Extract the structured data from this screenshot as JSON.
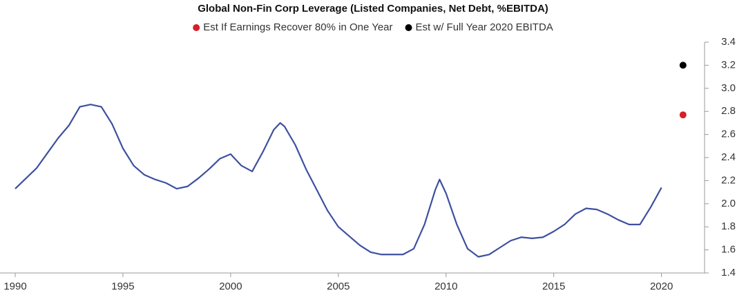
{
  "chart_data": {
    "type": "line",
    "title": "Global Non-Fin Corp Leverage (Listed Companies, Net Debt, %EBITDA)",
    "xlim": [
      1990,
      2022
    ],
    "xticks": [
      1990,
      1995,
      2000,
      2005,
      2010,
      2015,
      2020
    ],
    "ylim": [
      1.4,
      3.4
    ],
    "yticks": [
      1.4,
      1.6,
      1.8,
      {
        "value": 2,
        "label": "2.0"
      },
      2.2,
      2.4,
      2.6,
      2.8,
      {
        "value": 3,
        "label": "3.0"
      },
      3.2,
      3.4
    ],
    "series": [
      {
        "type": "line",
        "color": "#3d4fa0",
        "x": [
          1990,
          1990.5,
          1991,
          1991.5,
          1992,
          1992.5,
          1993,
          1993.5,
          1994,
          1994.5,
          1995,
          1995.5,
          1996,
          1996.5,
          1997,
          1997.5,
          1998,
          1998.5,
          1999,
          1999.5,
          2000,
          2000.5,
          2001,
          2001.5,
          2002,
          2002.3,
          2002.5,
          2003,
          2003.5,
          2004,
          2004.5,
          2005,
          2005.5,
          2006,
          2006.5,
          2007,
          2007.5,
          2008,
          2008.5,
          2009,
          2009.5,
          2009.7,
          2010,
          2010.5,
          2011,
          2011.5,
          2012,
          2012.5,
          2013,
          2013.5,
          2014,
          2014.5,
          2015,
          2015.5,
          2016,
          2016.5,
          2017,
          2017.5,
          2018,
          2018.5,
          2019,
          2019.5,
          2020
        ],
        "values": [
          2.13,
          2.22,
          2.31,
          2.44,
          2.57,
          2.68,
          2.84,
          2.86,
          2.84,
          2.69,
          2.48,
          2.33,
          2.25,
          2.21,
          2.18,
          2.13,
          2.15,
          2.22,
          2.3,
          2.39,
          2.43,
          2.33,
          2.28,
          2.45,
          2.64,
          2.7,
          2.67,
          2.51,
          2.3,
          2.12,
          1.94,
          1.8,
          1.72,
          1.64,
          1.58,
          1.56,
          1.56,
          1.56,
          1.61,
          1.82,
          2.12,
          2.21,
          2.09,
          1.82,
          1.61,
          1.54,
          1.56,
          1.62,
          1.68,
          1.71,
          1.7,
          1.71,
          1.76,
          1.82,
          1.91,
          1.96,
          1.95,
          1.91,
          1.86,
          1.82,
          1.82,
          1.97,
          2.14
        ]
      },
      {
        "type": "scatter",
        "name": "Est If Earnings Recover 80% in One Year",
        "color": "#d61f26",
        "x": [
          2021
        ],
        "values": [
          2.77
        ]
      },
      {
        "type": "scatter",
        "name": "Est w/ Full Year 2020 EBITDA",
        "color": "#000000",
        "x": [
          2021
        ],
        "values": [
          3.2
        ]
      }
    ]
  }
}
